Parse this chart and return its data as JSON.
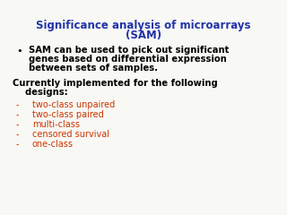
{
  "title_line1": "Significance analysis of microarrays",
  "title_line2": "(SAM)",
  "title_color": "#2233aa",
  "title_fontsize": 8.5,
  "bg_color": "#f8f8f5",
  "bullet_char": "•",
  "bullet_text_line1": "SAM can be used to pick out significant",
  "bullet_text_line2": "genes based on differential expression",
  "bullet_text_line3": "between sets of samples.",
  "bullet_color": "#000000",
  "bullet_fontsize": 7.2,
  "section_line1": "Currently implemented for the following",
  "section_line2": "    designs:",
  "section_color": "#000000",
  "section_fontsize": 7.2,
  "list_items": [
    "two-class unpaired",
    "two-class paired",
    "multi-class",
    "censored survival",
    "one-class"
  ],
  "list_color": "#cc3300",
  "list_fontsize": 7.0
}
